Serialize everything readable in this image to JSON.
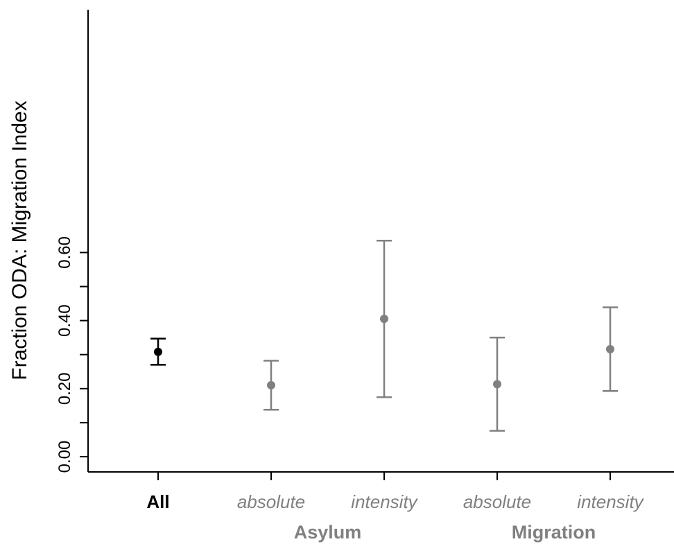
{
  "chart_data": {
    "type": "errorbar",
    "ylabel": "Fraction ODA: Migration Index",
    "ylim": [
      0,
      0.66
    ],
    "y_ticks": [
      {
        "value": 0.0,
        "label": "0.00"
      },
      {
        "value": 0.2,
        "label": "0.20"
      },
      {
        "value": 0.4,
        "label": "0.40"
      },
      {
        "value": 0.6,
        "label": "0.60"
      }
    ],
    "y_minor_ticks": [
      0.1,
      0.3,
      0.5
    ],
    "grid": false,
    "points": [
      {
        "category": "All",
        "group": "",
        "estimate": 0.308,
        "lower": 0.27,
        "upper": 0.347,
        "color": "#000000",
        "label_style": "bold"
      },
      {
        "category": "absolute",
        "group": "Asylum",
        "estimate": 0.21,
        "lower": 0.138,
        "upper": 0.282,
        "color": "#808080",
        "label_style": "italic"
      },
      {
        "category": "intensity",
        "group": "Asylum",
        "estimate": 0.405,
        "lower": 0.175,
        "upper": 0.635,
        "color": "#808080",
        "label_style": "italic"
      },
      {
        "category": "absolute",
        "group": "Migration",
        "estimate": 0.213,
        "lower": 0.076,
        "upper": 0.35,
        "color": "#808080",
        "label_style": "italic"
      },
      {
        "category": "intensity",
        "group": "Migration",
        "estimate": 0.316,
        "lower": 0.193,
        "upper": 0.439,
        "color": "#808080",
        "label_style": "italic"
      }
    ],
    "groups": [
      {
        "name": "Asylum",
        "span": [
          1,
          2
        ]
      },
      {
        "name": "Migration",
        "span": [
          3,
          4
        ]
      }
    ]
  }
}
